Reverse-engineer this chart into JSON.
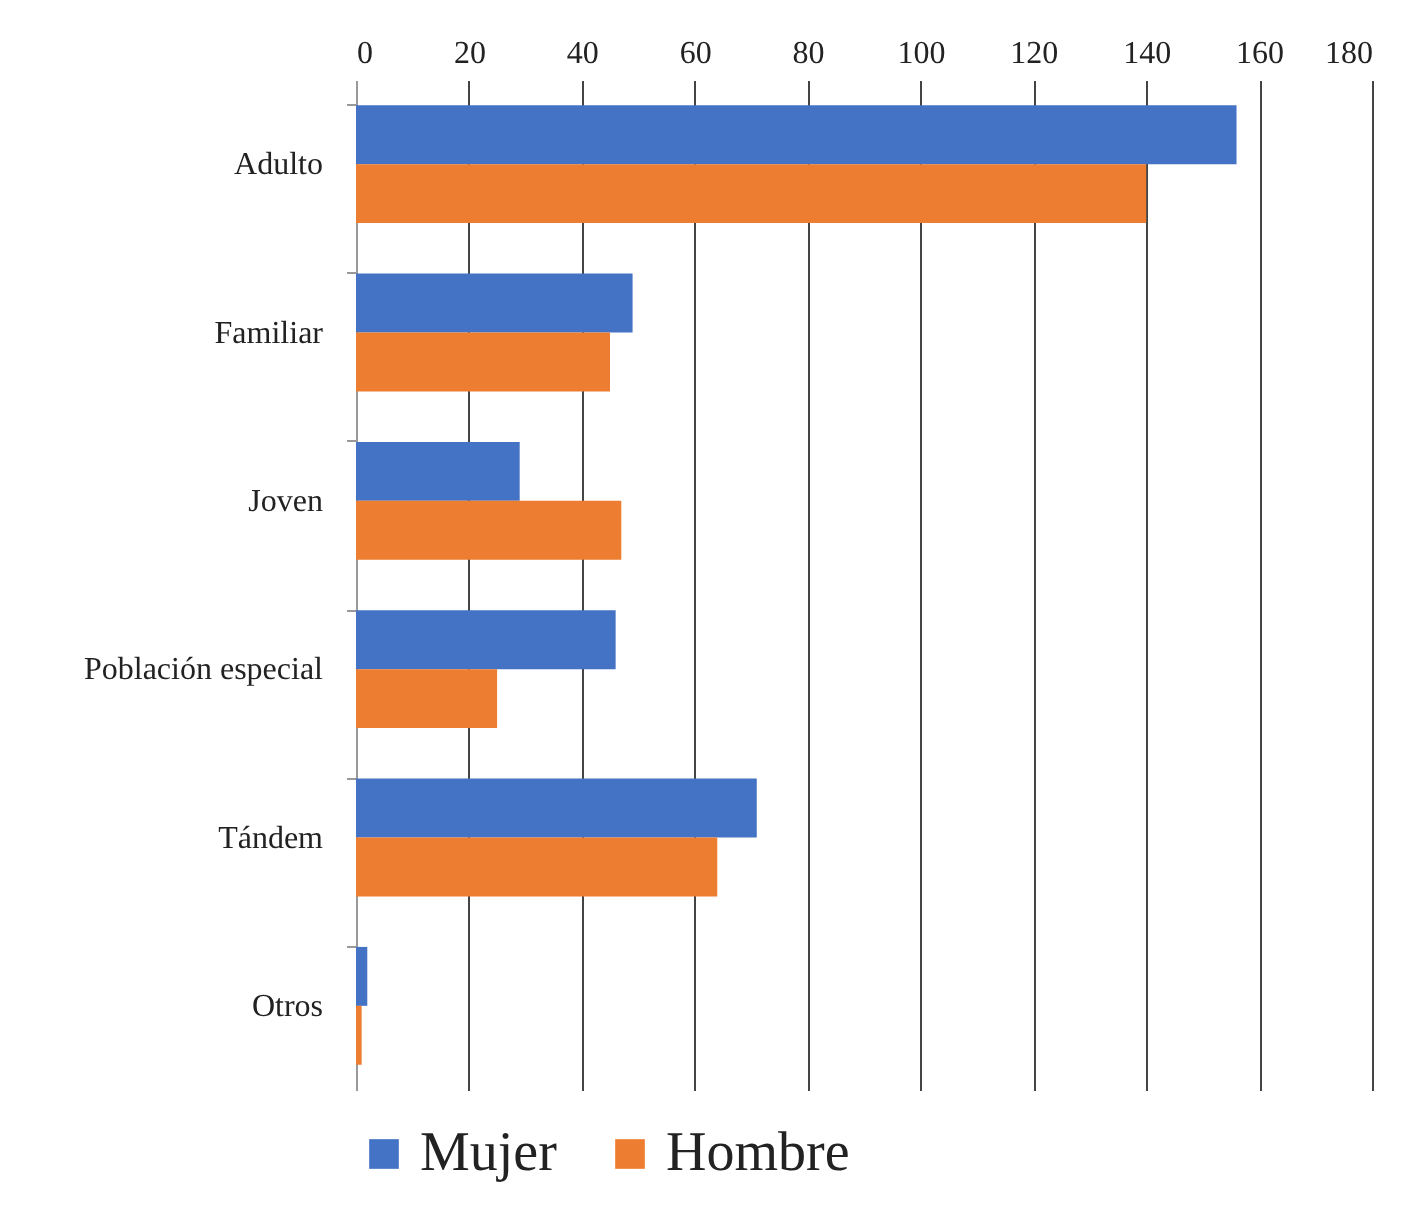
{
  "chart_data": {
    "type": "bar",
    "orientation": "horizontal",
    "categories": [
      "Adulto",
      "Familiar",
      "Joven",
      "Población especial",
      "Tándem",
      "Otros"
    ],
    "series": [
      {
        "name": "Mujer",
        "color": "#4472c4",
        "values": [
          156,
          49,
          29,
          46,
          71,
          2
        ]
      },
      {
        "name": "Hombre",
        "color": "#ed7d31",
        "values": [
          140,
          45,
          47,
          25,
          64,
          1
        ]
      }
    ],
    "xlim": [
      0,
      180
    ],
    "xticks": [
      0,
      20,
      40,
      60,
      80,
      100,
      120,
      140,
      160,
      180
    ],
    "grid": "x",
    "legend": "bottom"
  }
}
